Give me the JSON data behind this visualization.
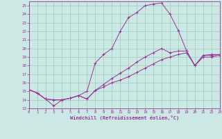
{
  "xlabel": "Windchill (Refroidissement éolien,°C)",
  "bg_color": "#cce8e4",
  "grid_color": "#99ccbb",
  "line_color": "#993399",
  "xlim": [
    0,
    23
  ],
  "ylim": [
    13,
    25.5
  ],
  "yticks": [
    13,
    14,
    15,
    16,
    17,
    18,
    19,
    20,
    21,
    22,
    23,
    24,
    25
  ],
  "xticks": [
    0,
    1,
    2,
    3,
    4,
    5,
    6,
    7,
    8,
    9,
    10,
    11,
    12,
    13,
    14,
    15,
    16,
    17,
    18,
    19,
    20,
    21,
    22,
    23
  ],
  "series1_x": [
    0,
    1,
    2,
    3,
    4,
    5,
    6,
    7,
    8,
    9,
    10,
    11,
    12,
    13,
    14,
    15,
    16,
    17,
    18,
    19,
    20,
    21,
    22,
    23
  ],
  "series1_y": [
    15.2,
    14.8,
    14.1,
    13.3,
    14.0,
    14.2,
    14.5,
    15.0,
    18.3,
    19.3,
    20.0,
    22.0,
    23.6,
    24.2,
    25.0,
    25.2,
    25.3,
    24.0,
    22.1,
    19.7,
    18.0,
    19.2,
    19.2,
    19.3
  ],
  "series2_x": [
    0,
    1,
    2,
    3,
    4,
    5,
    6,
    7,
    8,
    9,
    10,
    11,
    12,
    13,
    14,
    15,
    16,
    17,
    18,
    19,
    20,
    21,
    22,
    23
  ],
  "series2_y": [
    15.2,
    14.8,
    14.1,
    14.0,
    14.0,
    14.2,
    14.5,
    14.1,
    15.1,
    15.8,
    16.5,
    17.1,
    17.7,
    18.4,
    19.0,
    19.5,
    20.0,
    19.5,
    19.7,
    19.7,
    18.0,
    19.2,
    19.3,
    19.3
  ],
  "series3_x": [
    0,
    1,
    2,
    3,
    4,
    5,
    6,
    7,
    8,
    9,
    10,
    11,
    12,
    13,
    14,
    15,
    16,
    17,
    18,
    19,
    20,
    21,
    22,
    23
  ],
  "series3_y": [
    15.2,
    14.8,
    14.1,
    14.0,
    14.0,
    14.2,
    14.5,
    14.1,
    15.1,
    15.5,
    16.0,
    16.3,
    16.7,
    17.2,
    17.7,
    18.2,
    18.7,
    19.0,
    19.3,
    19.5,
    18.0,
    19.0,
    19.0,
    19.2
  ]
}
